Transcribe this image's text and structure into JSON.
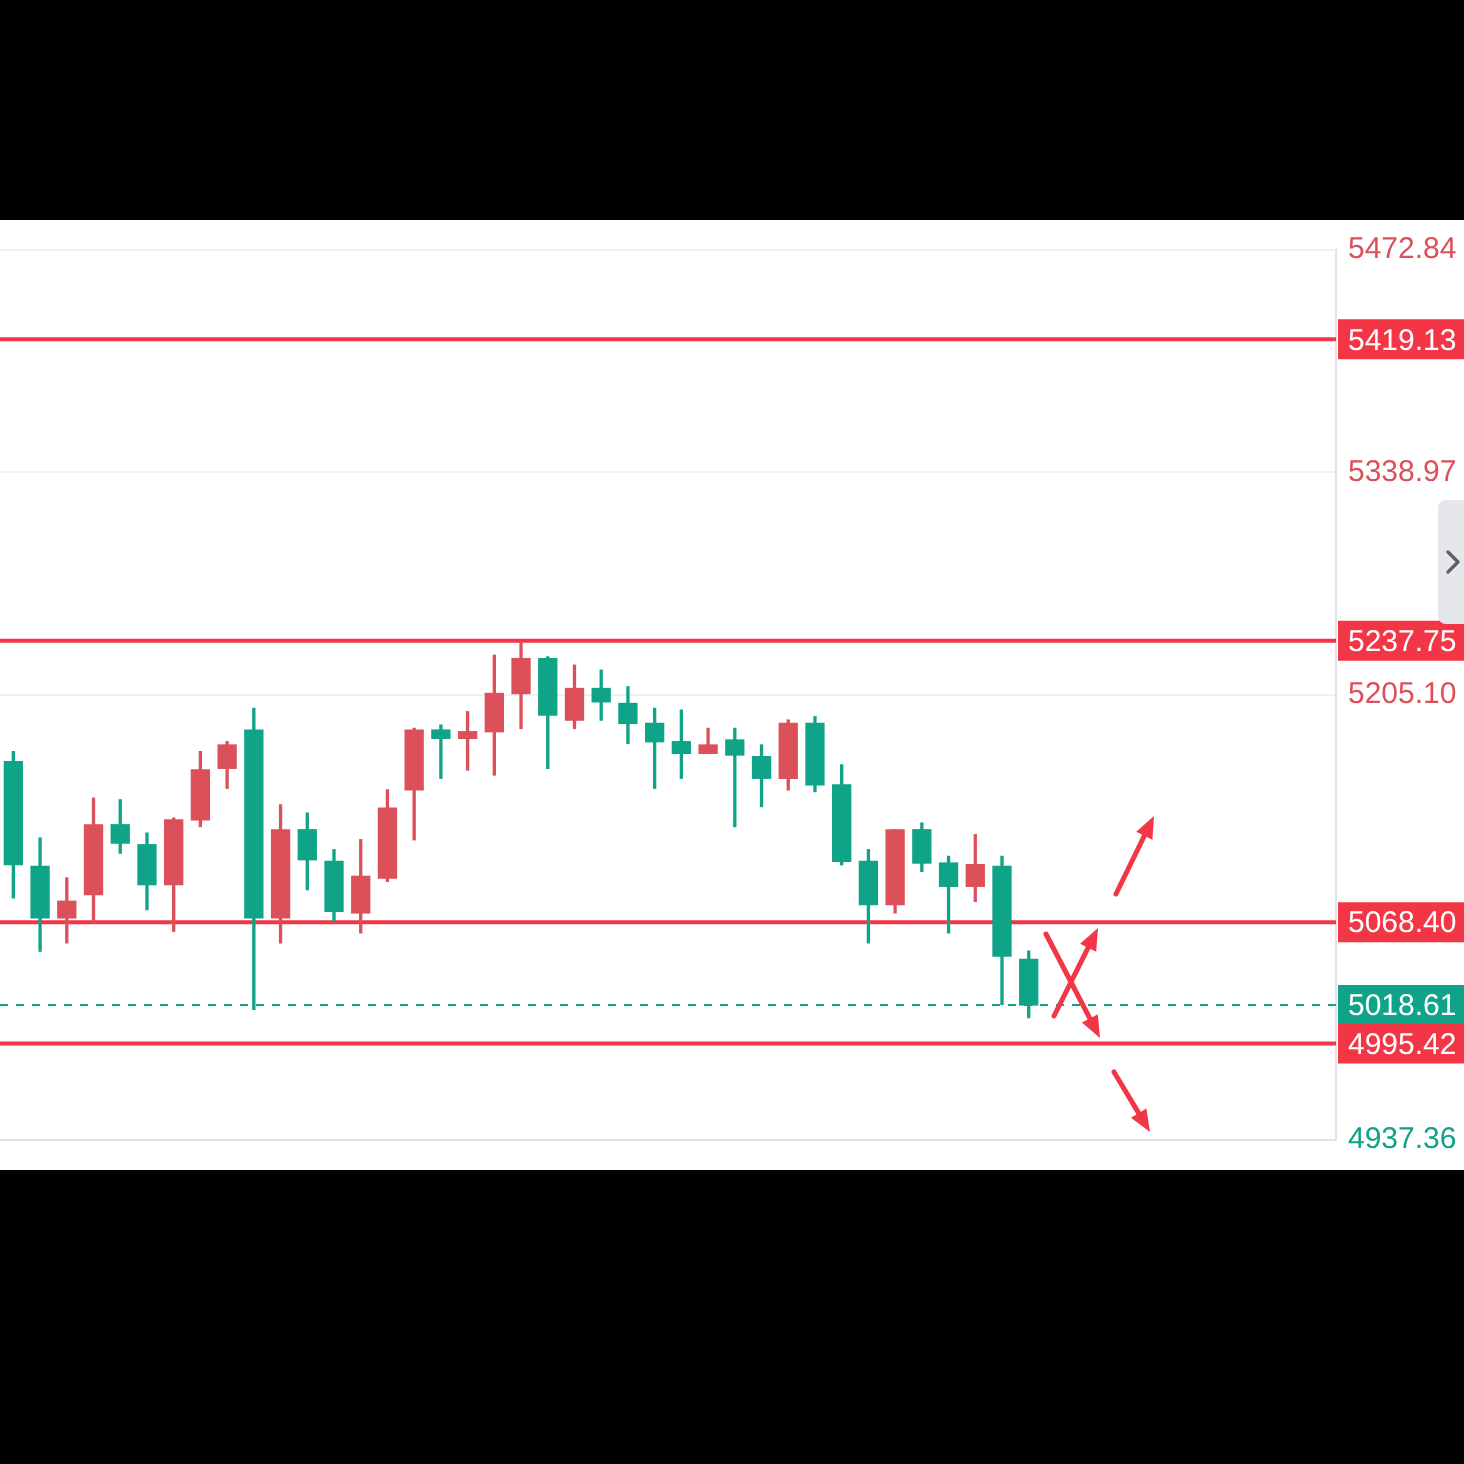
{
  "chart_data": {
    "type": "candlestick",
    "categories": [
      null,
      null,
      null,
      null,
      null,
      null,
      null,
      null,
      null,
      null,
      null,
      null,
      null,
      null,
      null,
      null,
      null,
      null,
      null,
      null,
      null,
      null,
      null,
      null,
      null,
      null,
      null,
      null,
      null,
      null,
      null,
      null,
      null,
      null,
      null,
      null,
      null,
      null,
      null,
      null,
      null,
      null,
      null,
      null,
      null,
      null,
      null,
      null,
      null,
      null
    ],
    "ohlc": [
      [
        5165,
        5171,
        5083,
        5103
      ],
      [
        5102,
        5119,
        5051,
        5071
      ],
      [
        5071,
        5095,
        5056,
        5081
      ],
      [
        5085,
        5143,
        5068,
        5127
      ],
      [
        5127,
        5142,
        5110,
        5116
      ],
      [
        5115,
        5122,
        5076,
        5091
      ],
      [
        5091,
        5131,
        5063,
        5130
      ],
      [
        5130,
        5171,
        5126,
        5160
      ],
      [
        5161,
        5177,
        5149,
        5175
      ],
      [
        5184,
        5197,
        5016,
        5071
      ],
      [
        5071,
        5139,
        5056,
        5124
      ],
      [
        5124,
        5134,
        5088,
        5106
      ],
      [
        5105,
        5112,
        5069,
        5075
      ],
      [
        5074,
        5118,
        5062,
        5096
      ],
      [
        5095,
        5148,
        5093,
        5137
      ],
      [
        5148,
        5185,
        5118,
        5184
      ],
      [
        5184,
        5187,
        5155,
        5179
      ],
      [
        5179,
        5195,
        5160,
        5183
      ],
      [
        5183,
        5229,
        5157,
        5206
      ],
      [
        5206,
        5237,
        5185,
        5227
      ],
      [
        5227,
        5228,
        5161,
        5193
      ],
      [
        5190,
        5223,
        5185,
        5209
      ],
      [
        5209,
        5220,
        5190,
        5201
      ],
      [
        5200,
        5210,
        5176,
        5188
      ],
      [
        5188,
        5197,
        5149,
        5177
      ],
      [
        5177,
        5196,
        5155,
        5170
      ],
      [
        5170,
        5185,
        5170,
        5175
      ],
      [
        5178,
        5185,
        5126,
        5169
      ],
      [
        5168,
        5175,
        5138,
        5155
      ],
      [
        5155,
        5190,
        5148,
        5188
      ],
      [
        5188,
        5192,
        5147,
        5151
      ],
      [
        5151,
        5163,
        5103,
        5105
      ],
      [
        5105,
        5112,
        5056,
        5079
      ],
      [
        5079,
        5124,
        5074,
        5124
      ],
      [
        5124,
        5128,
        5099,
        5104
      ],
      [
        5104,
        5108,
        5062,
        5090
      ],
      [
        5090,
        5121,
        5081,
        5103
      ],
      [
        5102,
        5108,
        5019,
        5048
      ],
      [
        5046,
        5051,
        5011,
        5018.61
      ],
      null,
      null,
      null,
      null,
      null,
      null,
      null,
      null,
      null,
      null,
      null
    ],
    "colors": [
      "#0fa387",
      "#0fa387",
      "#dc505a",
      "#dc505a",
      "#0fa387",
      "#0fa387",
      "#dc505a",
      "#dc505a",
      "#dc505a",
      "#0fa387",
      "#dc505a",
      "#0fa387",
      "#0fa387",
      "#dc505a",
      "#dc505a",
      "#dc505a",
      "#0fa387",
      "#dc505a",
      "#dc505a",
      "#dc505a",
      "#0fa387",
      "#dc505a",
      "#0fa387",
      "#0fa387",
      "#0fa387",
      "#0fa387",
      "#dc505a",
      "#0fa387",
      "#0fa387",
      "#dc505a",
      "#0fa387",
      "#0fa387",
      "#0fa387",
      "#dc505a",
      "#0fa387",
      "#0fa387",
      "#dc505a",
      "#0fa387",
      "#0fa387",
      null,
      null,
      null,
      null,
      null,
      null,
      null,
      null,
      null,
      null,
      null
    ],
    "ylim": [
      4937.36,
      5472.84
    ],
    "yticks": [
      5472.84,
      5338.97,
      {
        "value": 5205.1,
        "label": "5205.10"
      },
      4937.36
    ],
    "grid": "y",
    "ref_lines": [
      {
        "axis": "y",
        "value": 5419.13,
        "label": "5419.13",
        "color": "#f23645"
      },
      {
        "axis": "y",
        "value": 5237.75,
        "label": "5237.75",
        "color": "#f23645"
      },
      {
        "axis": "y",
        "value": 5068.4,
        "label": "5068.40",
        "color": "#f23645"
      },
      {
        "axis": "y",
        "value": 5018.61,
        "label": "5018.61",
        "color": "#0fa387",
        "line_style": "dashed"
      },
      {
        "axis": "y",
        "value": 4995.42,
        "label": "4995.42",
        "color": "#f23645"
      }
    ]
  }
}
